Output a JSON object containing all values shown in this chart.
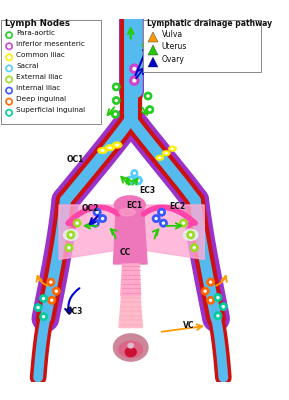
{
  "bg_color": "#ffffff",
  "aorta_color": "#dd1111",
  "vena_color": "#55bbee",
  "purple_path_color": "#9933cc",
  "uterus_color": "#ee88bb",
  "cervix_color": "#ffbbcc",
  "fallopian_color": "#ff44aa",
  "ovary_color": "#ffffff",
  "vulva_outer_color": "#cc8899",
  "vulva_inner_color": "#cc2244",
  "node_para_aortic": "#22cc22",
  "node_inf_mes": "#cc44cc",
  "node_common_iliac": "#ffee00",
  "node_sacral": "#55ccff",
  "node_ext_iliac": "#99dd22",
  "node_int_iliac": "#3355ff",
  "node_deep_ing": "#ff6600",
  "node_superf_ing": "#00cc99",
  "arrow_vulva": "#ff9900",
  "arrow_uterus": "#22cc00",
  "arrow_ovary": "#0000cc",
  "legend1_items": [
    {
      "label": "Para-aortic",
      "color": "#22cc22"
    },
    {
      "label": "Inferior mesenteric",
      "color": "#cc44cc"
    },
    {
      "label": "Common iliac",
      "color": "#ffee00"
    },
    {
      "label": "Sacral",
      "color": "#55ccff"
    },
    {
      "label": "External iliac",
      "color": "#99dd22"
    },
    {
      "label": "Internal iliac",
      "color": "#3355ff"
    },
    {
      "label": "Deep inguinal",
      "color": "#ff6600"
    },
    {
      "label": "Superficial inguinal",
      "color": "#00cc99"
    }
  ],
  "legend2_items": [
    {
      "label": "Vulva",
      "color": "#ff9900"
    },
    {
      "label": "Uterus",
      "color": "#22cc00"
    },
    {
      "label": "Ovary",
      "color": "#0000cc"
    }
  ]
}
